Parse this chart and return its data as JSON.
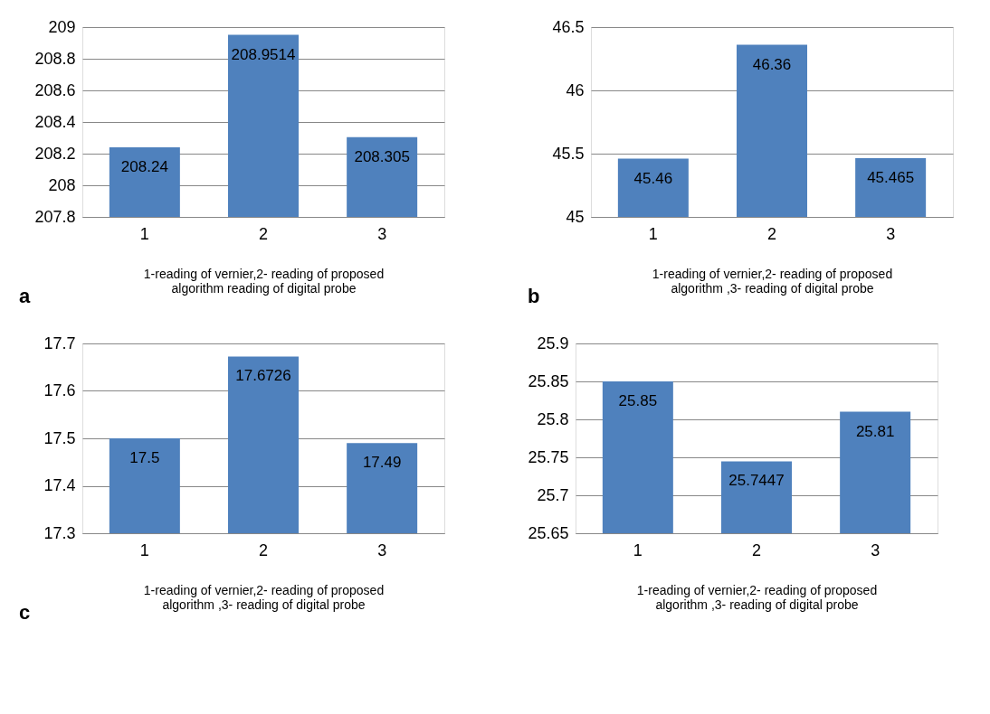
{
  "chart_data": [
    {
      "type": "bar",
      "categories": [
        "1",
        "2",
        "3"
      ],
      "values": [
        208.24,
        208.9514,
        208.305
      ],
      "color": "#4f81bd",
      "ylim": [
        207.8,
        209
      ],
      "yticks": [
        207.8,
        208,
        208.2,
        208.4,
        208.6,
        208.8,
        209
      ],
      "grid": "y",
      "data_labels": true,
      "xlabel": "1-reading of vernier,2- reading of proposed algorithm reading of digital probe",
      "annotations": [
        "a"
      ]
    },
    {
      "type": "bar",
      "categories": [
        "1",
        "2",
        "3"
      ],
      "values": [
        45.46,
        46.36,
        45.465
      ],
      "color": "#4f81bd",
      "ylim": [
        45,
        46.5
      ],
      "yticks": [
        45,
        45.5,
        46,
        46.5
      ],
      "grid": "y",
      "data_labels": true,
      "xlabel": "1-reading of vernier,2- reading of proposed algorithm ,3- reading of digital probe",
      "annotations": [
        "b"
      ]
    },
    {
      "type": "bar",
      "categories": [
        "1",
        "2",
        "3"
      ],
      "values": [
        17.5,
        17.6726,
        17.49
      ],
      "color": "#4f81bd",
      "ylim": [
        17.3,
        17.7
      ],
      "yticks": [
        17.3,
        17.4,
        17.5,
        17.6,
        17.7
      ],
      "grid": "y",
      "data_labels": true,
      "xlabel": "1-reading of vernier,2- reading of proposed algorithm ,3- reading of digital probe",
      "annotations": [
        "c"
      ]
    },
    {
      "type": "bar",
      "categories": [
        "1",
        "2",
        "3"
      ],
      "values": [
        25.85,
        25.7447,
        25.81
      ],
      "color": "#4f81bd",
      "ylim": [
        25.65,
        25.9
      ],
      "yticks": [
        25.65,
        25.7,
        25.75,
        25.8,
        25.85,
        25.9
      ],
      "grid": "y",
      "data_labels": true,
      "xlabel": "1-reading of vernier,2- reading of proposed algorithm ,3- reading of digital probe"
    }
  ]
}
